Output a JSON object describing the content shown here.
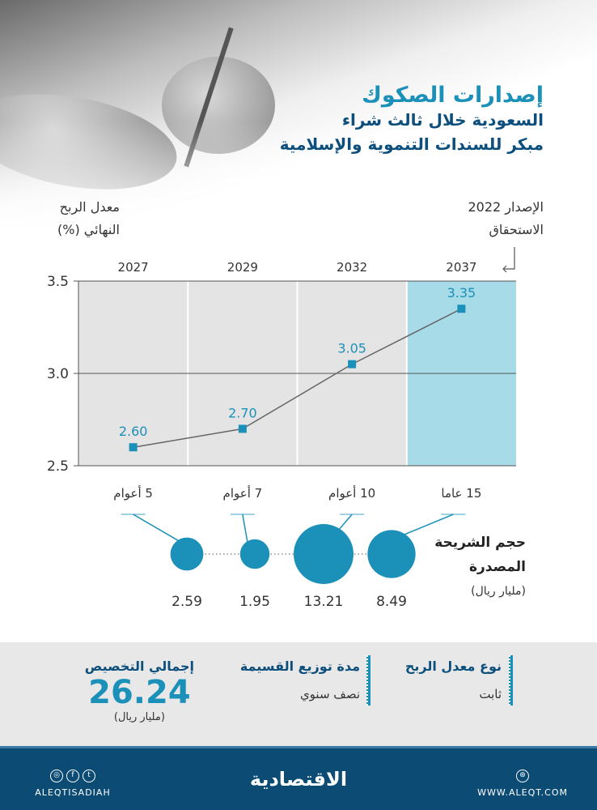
{
  "title": {
    "line1": "إصدارات الصكوك",
    "line2": "السعودية خلال ثالث شراء",
    "line3": "مبكر للسندات التنموية والإسلامية"
  },
  "labels": {
    "rate_line1": "معدل الربح",
    "rate_line2": "النهائي (%)",
    "issue": "الإصدار 2022",
    "maturity": "الاستحقاق",
    "size_line1": "حجم الشريحة",
    "size_line2": "المصدرة",
    "size_unit": "(مليار ريال)"
  },
  "chart_data": {
    "type": "line",
    "title": "إصدارات الصكوك",
    "ylabel": "معدل الربح النهائي (%)",
    "ylim": [
      2.5,
      3.5
    ],
    "yticks": [
      "2.5",
      "3.0",
      "3.5"
    ],
    "categories": [
      "2027",
      "2029",
      "2032",
      "2037"
    ],
    "tenors": [
      "5 أعوام",
      "7 أعوام",
      "10 أعوام",
      "15 عاما"
    ],
    "values": [
      2.6,
      2.7,
      3.05,
      3.35
    ],
    "value_labels": [
      "2.60",
      "2.70",
      "3.05",
      "3.35"
    ],
    "tranche_sizes": [
      2.59,
      1.95,
      13.21,
      8.49
    ],
    "tranche_labels": [
      "2.59",
      "1.95",
      "13.21",
      "8.49"
    ],
    "highlight": "2037"
  },
  "info": {
    "total_label": "إجمالي التخصيص",
    "total_value": "26.24",
    "total_unit": "(مليار ريال)",
    "dist_label": "مدة توزيع القسيمة",
    "dist_value": "نصف سنوي",
    "type_label": "نوع معدل الربح",
    "type_value": "ثابت"
  },
  "footer": {
    "social": "ALEQTISADIAH",
    "logo": "الاقتصادية",
    "site": "WWW.ALEQT.COM"
  },
  "colors": {
    "accent": "#1b90b8",
    "navy": "#0c4c74",
    "highlight": "#a8dbe8",
    "grid": "#e4e4e4"
  }
}
